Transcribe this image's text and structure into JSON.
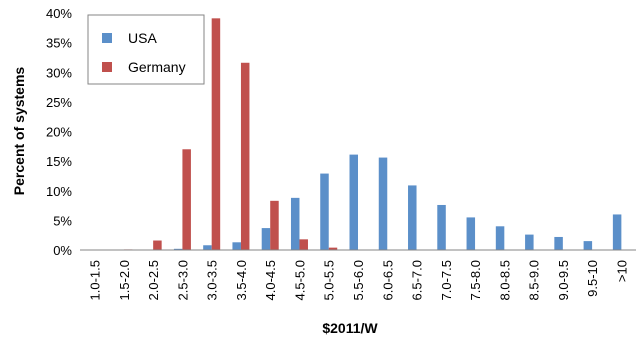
{
  "chart_data": {
    "type": "bar",
    "title": "",
    "xlabel": "$2011/W",
    "ylabel": "Percent of systems",
    "ylim": [
      0,
      40
    ],
    "yticks": [
      "0%",
      "5%",
      "10%",
      "15%",
      "20%",
      "25%",
      "30%",
      "35%",
      "40%"
    ],
    "categories": [
      "1.0-1.5",
      "1.5-2.0",
      "2.0-2.5",
      "2.5-3.0",
      "3.0-3.5",
      "3.5-4.0",
      "4.0-4.5",
      "4.5-5.0",
      "5.0-5.5",
      "5.5-6.0",
      "6.0-6.5",
      "6.5-7.0",
      "7.0-7.5",
      "7.5-8.0",
      "8.0-8.5",
      "8.5-9.0",
      "9.0-9.5",
      "9.5-10",
      ">10"
    ],
    "series": [
      {
        "name": "USA",
        "color": "#5b8fc9",
        "values": [
          0.0,
          0.0,
          0.0,
          0.2,
          0.8,
          1.3,
          3.7,
          8.8,
          12.9,
          16.1,
          15.6,
          10.9,
          7.6,
          5.5,
          4.0,
          2.6,
          2.2,
          1.5,
          6.0
        ]
      },
      {
        "name": "Germany",
        "color": "#c0504d",
        "values": [
          0.0,
          0.1,
          1.6,
          17.0,
          39.1,
          31.6,
          8.3,
          1.8,
          0.4,
          0.0,
          0.0,
          0.0,
          0.0,
          0.0,
          0.0,
          0.0,
          0.0,
          0.0,
          0.0
        ]
      }
    ],
    "grid": false,
    "legend_position": "top-left"
  }
}
